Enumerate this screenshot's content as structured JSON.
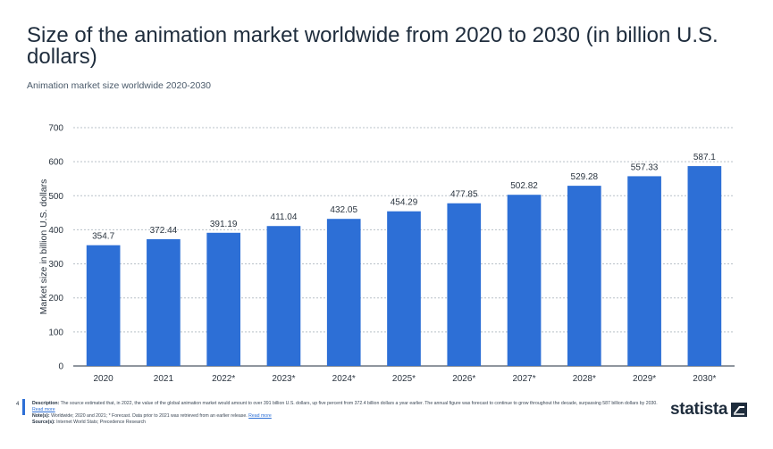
{
  "header": {
    "title": "Size of the animation market worldwide from 2020 to 2030 (in billion U.S. dollars)",
    "subtitle": "Animation market size worldwide 2020-2030"
  },
  "chart_data": {
    "type": "bar",
    "categories": [
      "2020",
      "2021",
      "2022*",
      "2023*",
      "2024*",
      "2025*",
      "2026*",
      "2027*",
      "2028*",
      "2029*",
      "2030*"
    ],
    "values": [
      354.7,
      372.44,
      391.19,
      411.04,
      432.05,
      454.29,
      477.85,
      502.82,
      529.28,
      557.33,
      587.1
    ],
    "value_labels": [
      "354.7",
      "372.44",
      "391.19",
      "411.04",
      "432.05",
      "454.29",
      "477.85",
      "502.82",
      "529.28",
      "557.33",
      "587.1"
    ],
    "ylabel": "Market size in billion U.S. dollars",
    "xlabel": "",
    "ylim": [
      0,
      700
    ],
    "yticks": [
      0,
      100,
      200,
      300,
      400,
      500,
      600,
      700
    ],
    "grid": true,
    "bar_color": "#2d6fd6"
  },
  "footer": {
    "page_number": "4",
    "description_label": "Description:",
    "description_text": "The source estimated that, in 2022, the value of the global animation market would amount to over 391 billion U.S. dollars, up five percent from 372.4 billion dollars a year earlier. The annual figure was forecast to continue to grow throughout the decade, surpassing 587 billion dollars by 2030.",
    "description_link": "Read more",
    "notes_label": "Note(s):",
    "notes_text": "Worldwide; 2020 and 2021; * Forecast. Data prior to 2021 was retrieved from an earlier release.",
    "notes_link": "Read more",
    "sources_label": "Source(s):",
    "sources_text": "Internet World Stats; Precedence Research"
  },
  "brand": {
    "name": "statista",
    "logo_icon": "statista-logo-icon",
    "accent_color": "#2d6fd6"
  }
}
